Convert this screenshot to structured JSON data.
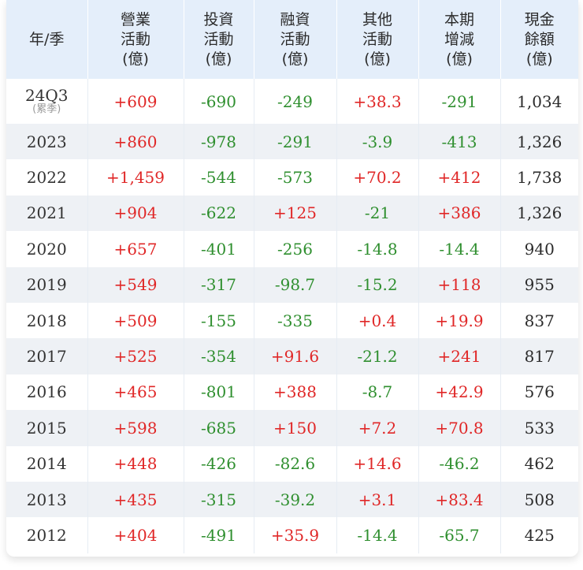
{
  "headers": [
    [
      "年/季"
    ],
    [
      "營業",
      "活動",
      "(億)"
    ],
    [
      "投資",
      "活動",
      "(億)"
    ],
    [
      "融資",
      "活動",
      "(億)"
    ],
    [
      "其他",
      "活動",
      "(億)"
    ],
    [
      "本期",
      "增減",
      "(億)"
    ],
    [
      "現金",
      "餘額",
      "(億)"
    ]
  ],
  "rows": [
    {
      "year": "24Q3",
      "sub": "(累季)",
      "values": [
        "+609",
        "-690",
        "-249",
        "+38.3",
        "-291",
        "1,034"
      ]
    },
    {
      "year": "2023",
      "sub": "",
      "values": [
        "+860",
        "-978",
        "-291",
        "-3.9",
        "-413",
        "1,326"
      ]
    },
    {
      "year": "2022",
      "sub": "",
      "values": [
        "+1,459",
        "-544",
        "-573",
        "+70.2",
        "+412",
        "1,738"
      ]
    },
    {
      "year": "2021",
      "sub": "",
      "values": [
        "+904",
        "-622",
        "+125",
        "-21",
        "+386",
        "1,326"
      ]
    },
    {
      "year": "2020",
      "sub": "",
      "values": [
        "+657",
        "-401",
        "-256",
        "-14.8",
        "-14.4",
        "940"
      ]
    },
    {
      "year": "2019",
      "sub": "",
      "values": [
        "+549",
        "-317",
        "-98.7",
        "-15.2",
        "+118",
        "955"
      ]
    },
    {
      "year": "2018",
      "sub": "",
      "values": [
        "+509",
        "-155",
        "-335",
        "+0.4",
        "+19.9",
        "837"
      ]
    },
    {
      "year": "2017",
      "sub": "",
      "values": [
        "+525",
        "-354",
        "+91.6",
        "-21.2",
        "+241",
        "817"
      ]
    },
    {
      "year": "2016",
      "sub": "",
      "values": [
        "+465",
        "-801",
        "+388",
        "-8.7",
        "+42.9",
        "576"
      ]
    },
    {
      "year": "2015",
      "sub": "",
      "values": [
        "+598",
        "-685",
        "+150",
        "+7.2",
        "+70.8",
        "533"
      ]
    },
    {
      "year": "2014",
      "sub": "",
      "values": [
        "+448",
        "-426",
        "-82.6",
        "+14.6",
        "-46.2",
        "462"
      ]
    },
    {
      "year": "2013",
      "sub": "",
      "values": [
        "+435",
        "-315",
        "-39.2",
        "+3.1",
        "+83.4",
        "508"
      ]
    },
    {
      "year": "2012",
      "sub": "",
      "values": [
        "+404",
        "-491",
        "+35.9",
        "-14.4",
        "-65.7",
        "425"
      ]
    }
  ],
  "colors": {
    "positive": "#e02727",
    "negative": "#2f8f2f",
    "header_bg": "#e4eefa",
    "stripe_bg": "#eef1f5"
  }
}
